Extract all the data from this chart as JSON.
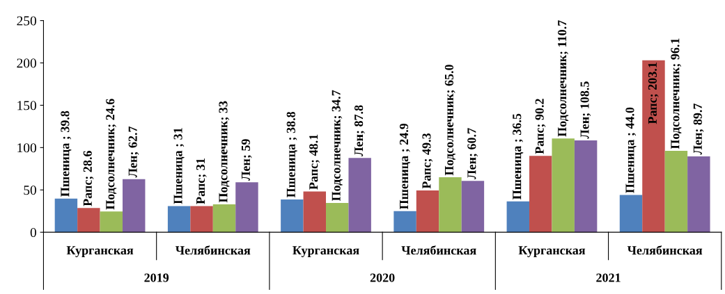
{
  "chart_data": {
    "type": "bar",
    "categories": [
      "Курганская",
      "Челябинская",
      "Курганская",
      "Челябинская",
      "Курганская",
      "Челябинская"
    ],
    "annotations": [
      "2019",
      "2020",
      "2021"
    ],
    "ylim": [
      0,
      250
    ],
    "yticks": [
      0,
      50,
      100,
      150,
      200,
      250
    ],
    "grid": false,
    "legend": false,
    "series": [
      {
        "color": "#4f81bd",
        "values": [
          39.8,
          31,
          38.8,
          24.9,
          36.5,
          44.0
        ],
        "value_labels": [
          "Пшеница ; 39.8",
          "Пшеница ; 31",
          "Пшеница ; 38.8",
          "Пшеница ; 24.9",
          "Пшеница ; 36.5",
          "Пшеница ; 44.0"
        ]
      },
      {
        "color": "#c0504d",
        "values": [
          28.6,
          31,
          48.1,
          49.3,
          90.2,
          203.1
        ],
        "value_labels": [
          "Рапс; 28.6",
          "Рапс; 31",
          "Рапс; 48.1",
          "Рапс; 49.3",
          "Рапс; 90.2",
          "Рапс; 203.1"
        ]
      },
      {
        "color": "#9bbb59",
        "values": [
          24.6,
          33,
          34.7,
          65.0,
          110.7,
          96.1
        ],
        "value_labels": [
          "Подсолнечник; 24.6",
          "Подсолнечник; 33",
          "Подсолнечник; 34.7",
          "Подсолнечник; 65.0",
          "Подсолнечник; 110.7",
          "Подсолнечник; 96.1"
        ]
      },
      {
        "color": "#8064a2",
        "values": [
          62.7,
          59,
          87.8,
          60.7,
          108.5,
          89.7
        ],
        "value_labels": [
          "Лен; 62.7",
          "Лен; 59",
          "Лен; 87.8",
          "Лен; 60.7",
          "Лен; 108.5",
          "Лен; 89.7"
        ]
      }
    ]
  }
}
